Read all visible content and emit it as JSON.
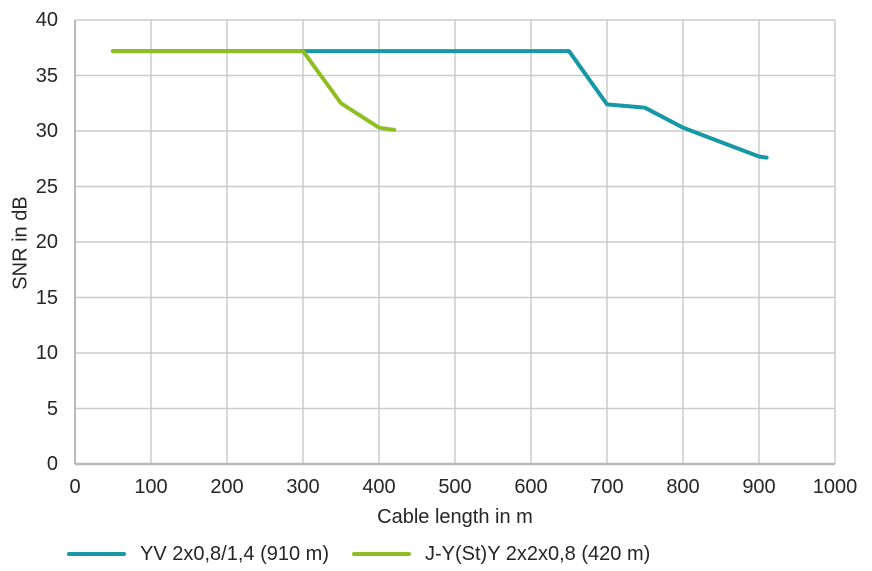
{
  "chart_data": {
    "type": "line",
    "title": "",
    "xlabel": "Cable length in m",
    "ylabel": "SNR in dB",
    "xlim": [
      0,
      1000
    ],
    "ylim": [
      0,
      40
    ],
    "xticks": [
      0,
      100,
      200,
      300,
      400,
      500,
      600,
      700,
      800,
      900,
      1000
    ],
    "yticks": [
      0,
      5,
      10,
      15,
      20,
      25,
      30,
      35,
      40
    ],
    "grid": true,
    "legend_position": "bottom-left",
    "colors": {
      "grid": "#CBCBCB",
      "axis": "#B9B9B9",
      "text": "#262626",
      "background": "#FFFFFF",
      "series_teal": "#1698A6",
      "series_green": "#8EBE24"
    },
    "series": [
      {
        "name": "YV 2x0,8/1,4 (910 m)",
        "color": "#1698A6",
        "points": [
          [
            50,
            37.2
          ],
          [
            100,
            37.2
          ],
          [
            150,
            37.2
          ],
          [
            200,
            37.2
          ],
          [
            250,
            37.2
          ],
          [
            300,
            37.2
          ],
          [
            350,
            37.2
          ],
          [
            400,
            37.2
          ],
          [
            450,
            37.2
          ],
          [
            500,
            37.2
          ],
          [
            550,
            37.2
          ],
          [
            600,
            37.2
          ],
          [
            650,
            37.2
          ],
          [
            700,
            32.4
          ],
          [
            750,
            32.1
          ],
          [
            800,
            30.3
          ],
          [
            850,
            29.0
          ],
          [
            900,
            27.7
          ],
          [
            910,
            27.6
          ]
        ]
      },
      {
        "name": "J-Y(St)Y 2x2x0,8 (420 m)",
        "color": "#8EBE24",
        "points": [
          [
            50,
            37.2
          ],
          [
            100,
            37.2
          ],
          [
            150,
            37.2
          ],
          [
            200,
            37.2
          ],
          [
            250,
            37.2
          ],
          [
            300,
            37.2
          ],
          [
            350,
            32.5
          ],
          [
            400,
            30.3
          ],
          [
            420,
            30.1
          ]
        ]
      }
    ]
  }
}
